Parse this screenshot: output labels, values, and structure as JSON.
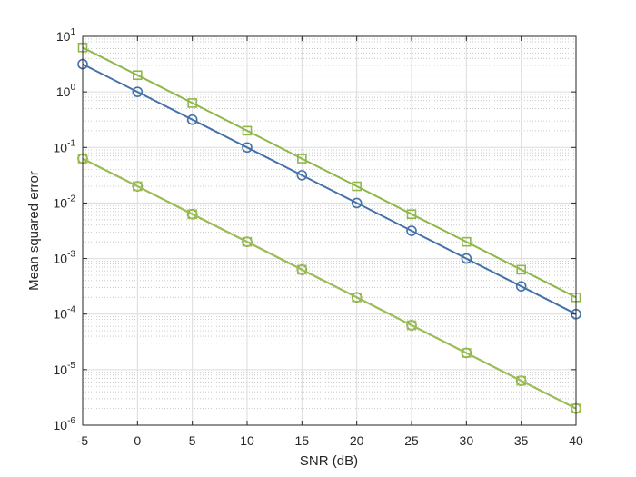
{
  "chart_data": {
    "type": "line",
    "title": "",
    "xlabel": "SNR (dB)",
    "ylabel": "Mean squared error",
    "xlim": [
      -5,
      40
    ],
    "ylim": [
      1e-06,
      10
    ],
    "yscale": "log",
    "grid": true,
    "minor_grid": true,
    "legend": "none",
    "x": [
      -5,
      0,
      5,
      10,
      15,
      20,
      25,
      30,
      35,
      40
    ],
    "x_ticks": [
      "-5",
      "0",
      "5",
      "10",
      "15",
      "20",
      "25",
      "30",
      "35",
      "40"
    ],
    "y_ticks": [
      {
        "base": "10",
        "exp": "1",
        "value": 10
      },
      {
        "base": "10",
        "exp": "0",
        "value": 1
      },
      {
        "base": "10",
        "exp": "-1",
        "value": 0.1
      },
      {
        "base": "10",
        "exp": "-2",
        "value": 0.01
      },
      {
        "base": "10",
        "exp": "-3",
        "value": 0.001
      },
      {
        "base": "10",
        "exp": "-4",
        "value": 0.0001
      },
      {
        "base": "10",
        "exp": "-5",
        "value": 1e-05
      },
      {
        "base": "10",
        "exp": "-6",
        "value": 1e-06
      }
    ],
    "series": [
      {
        "color": "#4472a8",
        "marker": "circle",
        "values": [
          3.16,
          1.0,
          0.316,
          0.1,
          0.0316,
          0.01,
          0.00316,
          0.001,
          0.000316,
          0.0001
        ]
      },
      {
        "color": "#8fb74a",
        "marker": "square",
        "values": [
          6.3,
          2.0,
          0.63,
          0.2,
          0.063,
          0.02,
          0.0063,
          0.002,
          0.00063,
          0.0002
        ]
      },
      {
        "color": "#7d8f3e",
        "marker": "circle",
        "values": [
          0.063,
          0.02,
          0.0063,
          0.002,
          0.00063,
          0.0002,
          6.3e-05,
          2e-05,
          6.3e-06,
          2e-06
        ]
      },
      {
        "color": "#9bbf55",
        "marker": "square",
        "values": [
          0.063,
          0.02,
          0.0063,
          0.002,
          0.00063,
          0.0002,
          6.3e-05,
          2e-05,
          6.3e-06,
          2e-06
        ]
      }
    ]
  }
}
